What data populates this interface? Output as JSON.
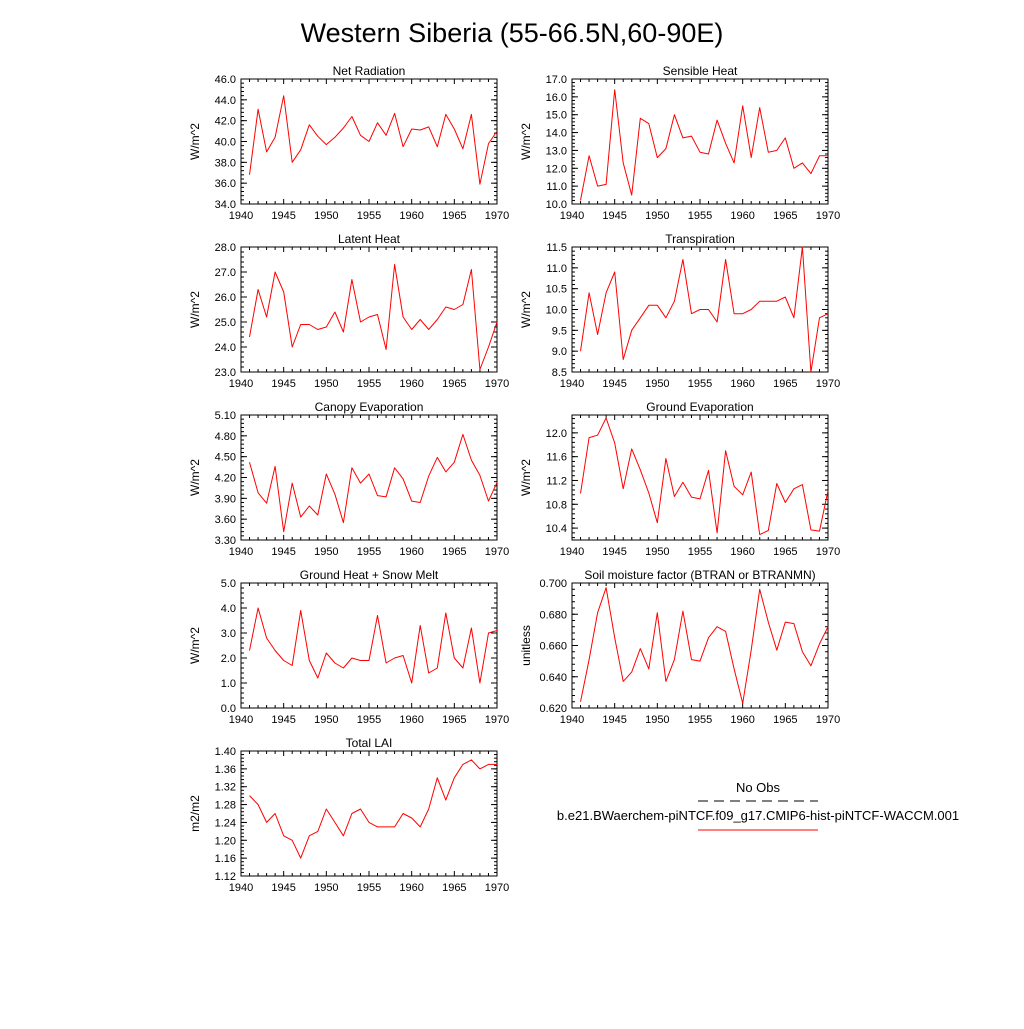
{
  "title": "Western Siberia (55-66.5N,60-90E)",
  "line_color": "#ff0000",
  "chart_data": [
    {
      "type": "line",
      "title": "Net Radiation",
      "ylabel": "W/m^2",
      "xlim": [
        1940,
        1970
      ],
      "ylim": [
        34.0,
        46.0
      ],
      "xticks": [
        1940,
        1945,
        1950,
        1955,
        1960,
        1965,
        1970
      ],
      "yticks": [
        "34.0",
        "36.0",
        "38.0",
        "40.0",
        "42.0",
        "44.0",
        "46.0"
      ],
      "x": [
        1941,
        1942,
        1943,
        1944,
        1945,
        1946,
        1947,
        1948,
        1949,
        1950,
        1951,
        1952,
        1953,
        1954,
        1955,
        1956,
        1957,
        1958,
        1959,
        1960,
        1961,
        1962,
        1963,
        1964,
        1965,
        1966,
        1967,
        1968,
        1969,
        1970
      ],
      "series": [
        {
          "values": [
            36.8,
            43.1,
            39.0,
            40.4,
            44.4,
            38.0,
            39.2,
            41.6,
            40.5,
            39.7,
            40.4,
            41.3,
            42.4,
            40.6,
            40.0,
            41.8,
            40.6,
            42.7,
            39.5,
            41.2,
            41.1,
            41.4,
            39.5,
            42.6,
            41.2,
            39.3,
            42.6,
            35.9,
            39.8,
            41.0
          ]
        }
      ]
    },
    {
      "type": "line",
      "title": "Sensible Heat",
      "ylabel": "W/m^2",
      "xlim": [
        1940,
        1970
      ],
      "ylim": [
        10.0,
        17.0
      ],
      "xticks": [
        1940,
        1945,
        1950,
        1955,
        1960,
        1965,
        1970
      ],
      "yticks": [
        "10.0",
        "11.0",
        "12.0",
        "13.0",
        "14.0",
        "15.0",
        "16.0",
        "17.0"
      ],
      "x": [
        1941,
        1942,
        1943,
        1944,
        1945,
        1946,
        1947,
        1948,
        1949,
        1950,
        1951,
        1952,
        1953,
        1954,
        1955,
        1956,
        1957,
        1958,
        1959,
        1960,
        1961,
        1962,
        1963,
        1964,
        1965,
        1966,
        1967,
        1968,
        1969,
        1970
      ],
      "series": [
        {
          "values": [
            10.2,
            12.7,
            11.0,
            11.1,
            16.4,
            12.3,
            10.5,
            14.8,
            14.5,
            12.6,
            13.1,
            15.0,
            13.7,
            13.8,
            12.9,
            12.8,
            14.7,
            13.4,
            12.3,
            15.5,
            12.6,
            15.4,
            12.9,
            13.0,
            13.7,
            12.0,
            12.3,
            11.7,
            12.7,
            12.7
          ]
        }
      ]
    },
    {
      "type": "line",
      "title": "Latent Heat",
      "ylabel": "W/m^2",
      "xlim": [
        1940,
        1970
      ],
      "ylim": [
        23.0,
        28.0
      ],
      "xticks": [
        1940,
        1945,
        1950,
        1955,
        1960,
        1965,
        1970
      ],
      "yticks": [
        "23.0",
        "24.0",
        "25.0",
        "26.0",
        "27.0",
        "28.0"
      ],
      "x": [
        1941,
        1942,
        1943,
        1944,
        1945,
        1946,
        1947,
        1948,
        1949,
        1950,
        1951,
        1952,
        1953,
        1954,
        1955,
        1956,
        1957,
        1958,
        1959,
        1960,
        1961,
        1962,
        1963,
        1964,
        1965,
        1966,
        1967,
        1968,
        1969,
        1970
      ],
      "series": [
        {
          "values": [
            24.4,
            26.3,
            25.2,
            27.0,
            26.2,
            24.0,
            24.9,
            24.9,
            24.7,
            24.8,
            25.4,
            24.6,
            26.7,
            25.0,
            25.2,
            25.3,
            23.9,
            27.3,
            25.2,
            24.7,
            25.1,
            24.7,
            25.1,
            25.6,
            25.5,
            25.7,
            27.1,
            23.1,
            24.0,
            25.0
          ]
        }
      ]
    },
    {
      "type": "line",
      "title": "Transpiration",
      "ylabel": "W/m^2",
      "xlim": [
        1940,
        1970
      ],
      "ylim": [
        8.5,
        11.5
      ],
      "xticks": [
        1940,
        1945,
        1950,
        1955,
        1960,
        1965,
        1970
      ],
      "yticks": [
        "8.5",
        "9.0",
        "9.5",
        "10.0",
        "10.5",
        "11.0",
        "11.5"
      ],
      "x": [
        1941,
        1942,
        1943,
        1944,
        1945,
        1946,
        1947,
        1948,
        1949,
        1950,
        1951,
        1952,
        1953,
        1954,
        1955,
        1956,
        1957,
        1958,
        1959,
        1960,
        1961,
        1962,
        1963,
        1964,
        1965,
        1966,
        1967,
        1968,
        1969,
        1970
      ],
      "series": [
        {
          "values": [
            9.0,
            10.4,
            9.4,
            10.4,
            10.9,
            8.8,
            9.5,
            9.8,
            10.1,
            10.1,
            9.8,
            10.2,
            11.2,
            9.9,
            10.0,
            10.0,
            9.7,
            11.2,
            9.9,
            9.9,
            10.0,
            10.2,
            10.2,
            10.2,
            10.3,
            9.8,
            11.5,
            8.5,
            9.8,
            9.9
          ]
        }
      ]
    },
    {
      "type": "line",
      "title": "Canopy Evaporation",
      "ylabel": "W/m^2",
      "xlim": [
        1940,
        1970
      ],
      "ylim": [
        3.3,
        5.1
      ],
      "xticks": [
        1940,
        1945,
        1950,
        1955,
        1960,
        1965,
        1970
      ],
      "yticks": [
        "3.30",
        "3.60",
        "3.90",
        "4.20",
        "4.50",
        "4.80",
        "5.10"
      ],
      "x": [
        1941,
        1942,
        1943,
        1944,
        1945,
        1946,
        1947,
        1948,
        1949,
        1950,
        1951,
        1952,
        1953,
        1954,
        1955,
        1956,
        1957,
        1958,
        1959,
        1960,
        1961,
        1962,
        1963,
        1964,
        1965,
        1966,
        1967,
        1968,
        1969,
        1970
      ],
      "series": [
        {
          "values": [
            4.42,
            3.98,
            3.83,
            4.36,
            3.42,
            4.12,
            3.63,
            3.79,
            3.66,
            4.25,
            3.96,
            3.55,
            4.34,
            4.12,
            4.25,
            3.94,
            3.92,
            4.34,
            4.18,
            3.86,
            3.84,
            4.22,
            4.49,
            4.28,
            4.42,
            4.82,
            4.45,
            4.23,
            3.86,
            4.13
          ]
        }
      ]
    },
    {
      "type": "line",
      "title": "Ground Evaporation",
      "ylabel": "W/m^2",
      "xlim": [
        1940,
        1970
      ],
      "ylim": [
        10.2,
        12.3
      ],
      "xticks": [
        1940,
        1945,
        1950,
        1955,
        1960,
        1965,
        1970
      ],
      "yticks": [
        "10.4",
        "10.8",
        "11.2",
        "11.6",
        "12.0"
      ],
      "x": [
        1941,
        1942,
        1943,
        1944,
        1945,
        1946,
        1947,
        1948,
        1949,
        1950,
        1951,
        1952,
        1953,
        1954,
        1955,
        1956,
        1957,
        1958,
        1959,
        1960,
        1961,
        1962,
        1963,
        1964,
        1965,
        1966,
        1967,
        1968,
        1969,
        1970
      ],
      "series": [
        {
          "values": [
            10.98,
            11.92,
            11.96,
            12.25,
            11.83,
            11.06,
            11.73,
            11.38,
            10.99,
            10.49,
            11.57,
            10.93,
            11.17,
            10.92,
            10.89,
            11.37,
            10.32,
            11.7,
            11.1,
            10.96,
            11.34,
            10.29,
            10.36,
            11.15,
            10.83,
            11.06,
            11.13,
            10.37,
            10.35,
            11.03
          ]
        }
      ]
    },
    {
      "type": "line",
      "title": "Ground Heat + Snow Melt",
      "ylabel": "W/m^2",
      "xlim": [
        1940,
        1970
      ],
      "ylim": [
        0.0,
        5.0
      ],
      "xticks": [
        1940,
        1945,
        1950,
        1955,
        1960,
        1965,
        1970
      ],
      "yticks": [
        "0.0",
        "1.0",
        "2.0",
        "3.0",
        "4.0",
        "5.0"
      ],
      "x": [
        1941,
        1942,
        1943,
        1944,
        1945,
        1946,
        1947,
        1948,
        1949,
        1950,
        1951,
        1952,
        1953,
        1954,
        1955,
        1956,
        1957,
        1958,
        1959,
        1960,
        1961,
        1962,
        1963,
        1964,
        1965,
        1966,
        1967,
        1968,
        1969,
        1970
      ],
      "series": [
        {
          "values": [
            2.3,
            4.0,
            2.8,
            2.3,
            1.9,
            1.7,
            3.9,
            1.9,
            1.2,
            2.2,
            1.8,
            1.6,
            2.0,
            1.9,
            1.9,
            3.7,
            1.8,
            2.0,
            2.1,
            1.0,
            3.3,
            1.4,
            1.6,
            3.8,
            2.0,
            1.6,
            3.2,
            1.0,
            3.0,
            3.1
          ]
        }
      ]
    },
    {
      "type": "line",
      "title": "Soil moisture factor (BTRAN or BTRANMN)",
      "ylabel": "unitless",
      "xlim": [
        1940,
        1970
      ],
      "ylim": [
        0.62,
        0.7
      ],
      "xticks": [
        1940,
        1945,
        1950,
        1955,
        1960,
        1965,
        1970
      ],
      "yticks": [
        "0.620",
        "0.640",
        "0.660",
        "0.680",
        "0.700"
      ],
      "x": [
        1941,
        1942,
        1943,
        1944,
        1945,
        1946,
        1947,
        1948,
        1949,
        1950,
        1951,
        1952,
        1953,
        1954,
        1955,
        1956,
        1957,
        1958,
        1959,
        1960,
        1961,
        1962,
        1963,
        1964,
        1965,
        1966,
        1967,
        1968,
        1969,
        1970
      ],
      "series": [
        {
          "values": [
            0.624,
            0.651,
            0.681,
            0.697,
            0.665,
            0.637,
            0.643,
            0.658,
            0.645,
            0.681,
            0.637,
            0.651,
            0.682,
            0.651,
            0.65,
            0.665,
            0.672,
            0.669,
            0.645,
            0.623,
            0.657,
            0.696,
            0.675,
            0.657,
            0.675,
            0.674,
            0.656,
            0.647,
            0.661,
            0.672
          ]
        }
      ]
    },
    {
      "type": "line",
      "title": "Total LAI",
      "ylabel": "m2/m2",
      "xlim": [
        1940,
        1970
      ],
      "ylim": [
        1.12,
        1.4
      ],
      "xticks": [
        1940,
        1945,
        1950,
        1955,
        1960,
        1965,
        1970
      ],
      "yticks": [
        "1.12",
        "1.16",
        "1.20",
        "1.24",
        "1.28",
        "1.32",
        "1.36",
        "1.40"
      ],
      "x": [
        1941,
        1942,
        1943,
        1944,
        1945,
        1946,
        1947,
        1948,
        1949,
        1950,
        1951,
        1952,
        1953,
        1954,
        1955,
        1956,
        1957,
        1958,
        1959,
        1960,
        1961,
        1962,
        1963,
        1964,
        1965,
        1966,
        1967,
        1968,
        1969,
        1970
      ],
      "series": [
        {
          "values": [
            1.3,
            1.28,
            1.24,
            1.26,
            1.21,
            1.2,
            1.16,
            1.21,
            1.22,
            1.27,
            1.24,
            1.21,
            1.26,
            1.27,
            1.24,
            1.23,
            1.23,
            1.23,
            1.26,
            1.25,
            1.23,
            1.27,
            1.34,
            1.29,
            1.34,
            1.37,
            1.38,
            1.36,
            1.37,
            1.37
          ]
        }
      ]
    }
  ],
  "legend": {
    "obs_label": "No Obs",
    "model_label": "b.e21.BWaerchem-piNTCF.f09_g17.CMIP6-hist-piNTCF-WACCM.001"
  }
}
